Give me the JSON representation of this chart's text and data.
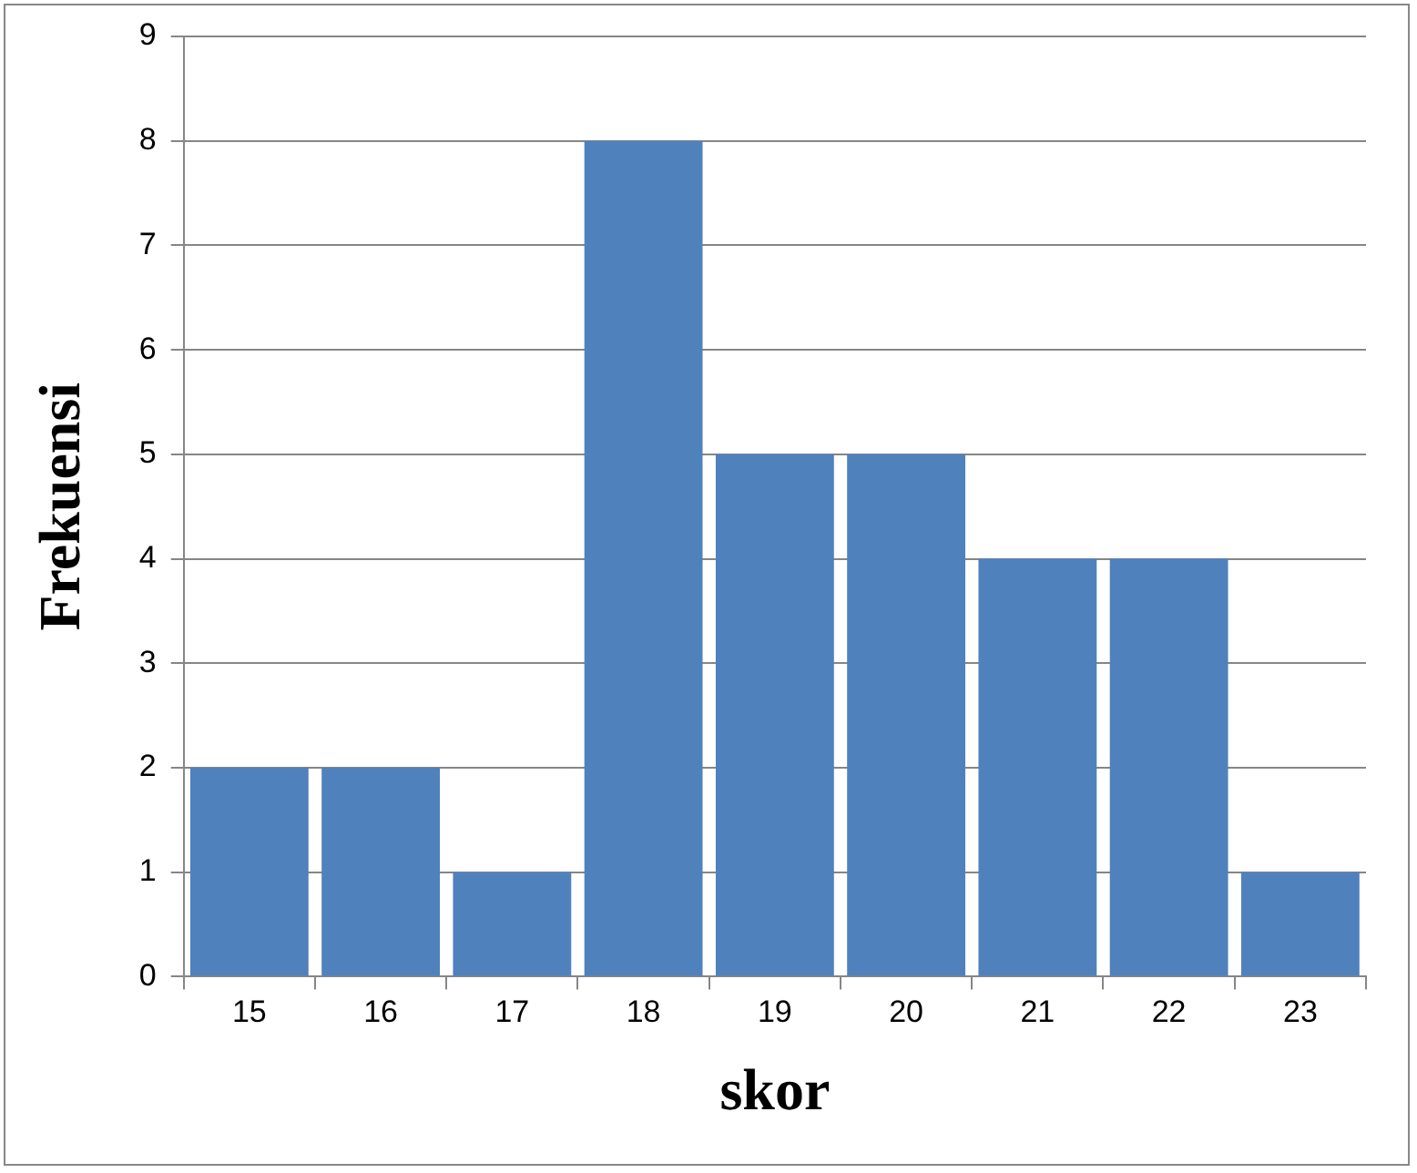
{
  "chart_data": {
    "type": "bar",
    "xlabel": "skor",
    "ylabel": "Frekuensi",
    "categories": [
      "15",
      "16",
      "17",
      "18",
      "19",
      "20",
      "21",
      "22",
      "23"
    ],
    "values": [
      2,
      2,
      1,
      8,
      5,
      5,
      4,
      4,
      1
    ],
    "color": "#4f81bd",
    "ylim": [
      0,
      9
    ],
    "yticks": [
      0,
      1,
      2,
      3,
      4,
      5,
      6,
      7,
      8,
      9
    ],
    "grid": "y"
  }
}
